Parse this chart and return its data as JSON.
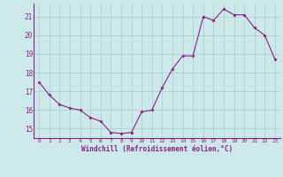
{
  "x": [
    0,
    1,
    2,
    3,
    4,
    5,
    6,
    7,
    8,
    9,
    10,
    11,
    12,
    13,
    14,
    15,
    16,
    17,
    18,
    19,
    20,
    21,
    22,
    23
  ],
  "y": [
    17.5,
    16.8,
    16.3,
    16.1,
    16.0,
    15.6,
    15.4,
    14.8,
    14.75,
    14.8,
    15.9,
    16.0,
    17.2,
    18.2,
    18.9,
    18.9,
    21.0,
    20.8,
    21.4,
    21.1,
    21.1,
    20.4,
    20.0,
    18.7
  ],
  "line_color": "#882288",
  "marker": "D",
  "marker_size": 2.0,
  "background_color": "#cce8e8",
  "grid_color": "#aacccc",
  "xlabel": "Windchill (Refroidissement éolien,°C)",
  "xlabel_color": "#882288",
  "tick_color": "#882288",
  "axis_color": "#882288",
  "ylim": [
    14.5,
    21.7
  ],
  "yticks": [
    15,
    16,
    17,
    18,
    19,
    20,
    21
  ],
  "xticks": [
    0,
    1,
    2,
    3,
    4,
    5,
    6,
    7,
    8,
    9,
    10,
    11,
    12,
    13,
    14,
    15,
    16,
    17,
    18,
    19,
    20,
    21,
    22,
    23
  ],
  "xlabel_fontsize": 5.5,
  "xtick_fontsize": 4.5,
  "ytick_fontsize": 5.5
}
